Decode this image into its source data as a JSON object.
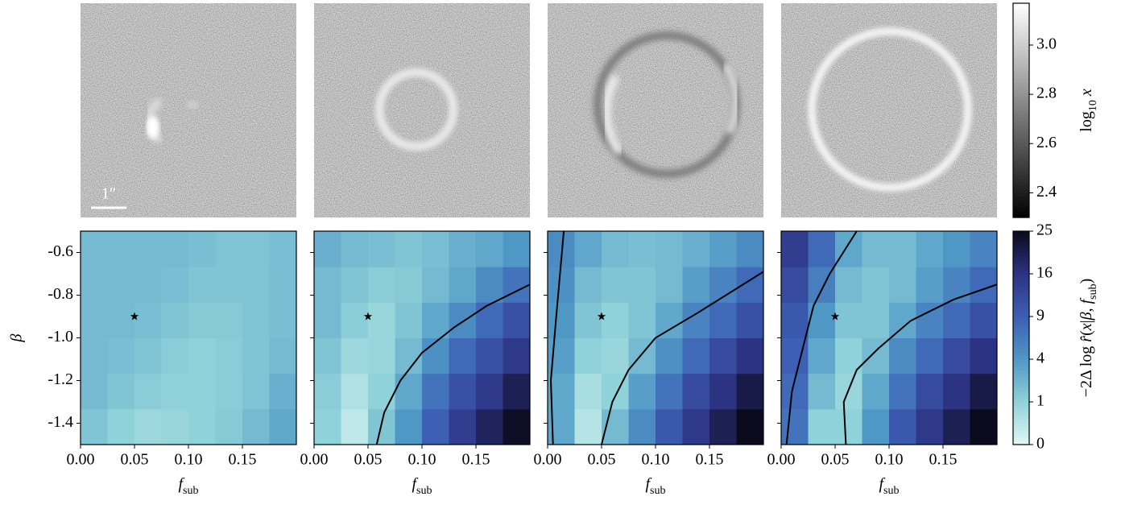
{
  "images": {
    "scalebar_label": "1″"
  },
  "colorbars": [
    {
      "label": [
        {
          "text": "log"
        },
        {
          "text": "10",
          "sub": true
        },
        {
          "text": " x",
          "italic": true
        }
      ],
      "ylim": [
        2.3,
        3.17
      ],
      "yticks": [
        2.4,
        2.6,
        2.8,
        {
          "value": 3,
          "label": "3.0"
        }
      ],
      "scale": "linear",
      "stops": [
        2.3,
        3.17
      ],
      "colors": [
        "#000000",
        "#ffffff"
      ]
    },
    {
      "label": [
        {
          "text": "−2Δ log "
        },
        {
          "text": "r̂",
          "italic": true
        },
        {
          "text": "("
        },
        {
          "text": "x",
          "italic": true
        },
        {
          "text": "|"
        },
        {
          "text": "β",
          "italic": true
        },
        {
          "text": ", "
        },
        {
          "text": "f",
          "italic": true
        },
        {
          "text": "sub",
          "sub": true
        },
        {
          "text": ")"
        }
      ],
      "ylim": [
        0,
        25
      ],
      "yticks": [
        0,
        1,
        4,
        9,
        16,
        25
      ],
      "scale": "sqrt",
      "stops": [
        0,
        1,
        4,
        9,
        16,
        25
      ],
      "colors": [
        "#e2f8f6",
        "#90d2d9",
        "#4f98c6",
        "#3d5fb4",
        "#2d3383",
        "#0a0a1c"
      ]
    }
  ],
  "chart_data": [
    {
      "type": "heatmap",
      "xlabel": "f",
      "xlabel_sub": "sub",
      "ylabel": "β",
      "ytick_labels": true,
      "xlim": [
        0,
        0.2
      ],
      "ylim": [
        -1.5,
        -0.5
      ],
      "xticks": [
        {
          "value": 0,
          "label": "0.00"
        },
        0.05,
        {
          "value": 0.1,
          "label": "0.10"
        },
        0.15
      ],
      "yticks": [
        -0.6,
        -0.8,
        {
          "value": -1,
          "label": "-1.0"
        },
        -1.2,
        -1.4
      ],
      "x_edges": [
        0,
        0.025,
        0.05,
        0.075,
        0.1,
        0.125,
        0.15,
        0.175,
        0.2
      ],
      "y_edges": [
        -1.5,
        -1.3333,
        -1.1667,
        -1,
        -0.8333,
        -0.6667,
        -0.5
      ],
      "values": [
        [
          1.5,
          1,
          0.7,
          0.8,
          1,
          1.3,
          2,
          3
        ],
        [
          2,
          1.5,
          1.2,
          1,
          1,
          1.2,
          1.6,
          2.5
        ],
        [
          2,
          1.8,
          1.5,
          1.2,
          1,
          1.2,
          1.5,
          2
        ],
        [
          2,
          2,
          1.8,
          1.5,
          1.3,
          1.3,
          1.5,
          1.8
        ],
        [
          2,
          2,
          2,
          1.8,
          1.5,
          1.5,
          1.5,
          1.8
        ],
        [
          2,
          2,
          2,
          2,
          1.8,
          1.6,
          1.6,
          1.8
        ]
      ],
      "contours": [],
      "marker": {
        "x": 0.05,
        "y": -0.9
      }
    },
    {
      "type": "heatmap",
      "xlabel": "f",
      "xlabel_sub": "sub",
      "ytick_labels": false,
      "xlim": [
        0,
        0.2
      ],
      "ylim": [
        -1.5,
        -0.5
      ],
      "xticks": [
        {
          "value": 0,
          "label": "0.00"
        },
        0.05,
        {
          "value": 0.1,
          "label": "0.10"
        },
        0.15
      ],
      "yticks": [
        -0.6,
        -0.8,
        -1,
        -1.2,
        -1.4
      ],
      "x_edges": [
        0,
        0.025,
        0.05,
        0.075,
        0.1,
        0.125,
        0.15,
        0.175,
        0.2
      ],
      "y_edges": [
        -1.5,
        -1.3333,
        -1.1667,
        -1,
        -0.8333,
        -0.6667,
        -0.5
      ],
      "values": [
        [
          1,
          0.2,
          1.5,
          4,
          9,
          14,
          19,
          24
        ],
        [
          1.2,
          0.4,
          1,
          3,
          7,
          11,
          15,
          20
        ],
        [
          1.5,
          0.7,
          0.8,
          2,
          4.5,
          8,
          11,
          15
        ],
        [
          2,
          1.2,
          0.8,
          1.5,
          3,
          5,
          8,
          11
        ],
        [
          2,
          1.5,
          1.2,
          1.3,
          2,
          3,
          5,
          7
        ],
        [
          2.5,
          2,
          1.8,
          1.5,
          1.8,
          2.5,
          3,
          4
        ]
      ],
      "contours": [
        {
          "x": [
            0.058,
            0.065,
            0.08,
            0.1,
            0.13,
            0.16,
            0.2
          ],
          "y": [
            -1.5,
            -1.35,
            -1.2,
            -1.07,
            -0.95,
            -0.85,
            -0.75
          ]
        }
      ],
      "marker": {
        "x": 0.05,
        "y": -0.9
      }
    },
    {
      "type": "heatmap",
      "xlabel": "f",
      "xlabel_sub": "sub",
      "ytick_labels": false,
      "xlim": [
        0,
        0.2
      ],
      "ylim": [
        -1.5,
        -0.5
      ],
      "xticks": [
        {
          "value": 0,
          "label": "0.00"
        },
        0.05,
        {
          "value": 0.1,
          "label": "0.10"
        },
        0.15
      ],
      "yticks": [
        -0.6,
        -0.8,
        -1,
        -1.2,
        -1.4
      ],
      "x_edges": [
        0,
        0.025,
        0.05,
        0.075,
        0.1,
        0.125,
        0.15,
        0.175,
        0.2
      ],
      "y_edges": [
        -1.5,
        -1.3333,
        -1.1667,
        -1,
        -0.8333,
        -0.6667,
        -0.5
      ],
      "values": [
        [
          3,
          0.3,
          2,
          5,
          10,
          15,
          20,
          25
        ],
        [
          3,
          0.5,
          1,
          3.5,
          7,
          12,
          16,
          21
        ],
        [
          3.5,
          1,
          0.8,
          2,
          4.5,
          8,
          12,
          16
        ],
        [
          4,
          1.5,
          1,
          1.5,
          3,
          5.5,
          8,
          11
        ],
        [
          4.5,
          2,
          1.5,
          1.5,
          2,
          3.5,
          5.5,
          8
        ],
        [
          5,
          3,
          2,
          1.8,
          2,
          2.5,
          3.5,
          5
        ]
      ],
      "contours": [
        {
          "x": [
            0.005,
            0.003,
            0.008,
            0.015
          ],
          "y": [
            -1.5,
            -1.2,
            -0.9,
            -0.5
          ]
        },
        {
          "x": [
            0.05,
            0.06,
            0.075,
            0.1,
            0.14,
            0.2
          ],
          "y": [
            -1.5,
            -1.3,
            -1.15,
            -1,
            -0.88,
            -0.69
          ]
        }
      ],
      "marker": {
        "x": 0.05,
        "y": -0.9
      }
    },
    {
      "type": "heatmap",
      "xlabel": "f",
      "xlabel_sub": "sub",
      "ytick_labels": false,
      "xlim": [
        0,
        0.2
      ],
      "ylim": [
        -1.5,
        -0.5
      ],
      "xticks": [
        {
          "value": 0,
          "label": "0.00"
        },
        0.05,
        {
          "value": 0.1,
          "label": "0.10"
        },
        0.15
      ],
      "yticks": [
        -0.6,
        -0.8,
        -1,
        -1.2,
        -1.4
      ],
      "x_edges": [
        0,
        0.025,
        0.05,
        0.075,
        0.1,
        0.125,
        0.15,
        0.175,
        0.2
      ],
      "y_edges": [
        -1.5,
        -1.3333,
        -1.1667,
        -1,
        -0.8333,
        -0.6667,
        -0.5
      ],
      "values": [
        [
          7,
          1,
          1,
          4,
          10,
          15,
          20,
          25
        ],
        [
          8,
          2,
          0.8,
          3,
          7,
          12,
          16,
          21
        ],
        [
          9,
          3,
          1,
          2,
          5,
          8,
          12,
          16
        ],
        [
          10,
          4,
          1.5,
          1.5,
          3,
          5.5,
          8,
          11
        ],
        [
          12,
          6,
          2,
          1.5,
          2,
          3.5,
          5.5,
          8
        ],
        [
          14,
          8,
          3,
          2,
          2,
          3,
          4,
          5.5
        ]
      ],
      "contours": [
        {
          "x": [
            0.005,
            0.01,
            0.02,
            0.03,
            0.045,
            0.07
          ],
          "y": [
            -1.5,
            -1.25,
            -1.05,
            -0.85,
            -0.7,
            -0.5
          ]
        },
        {
          "x": [
            0.06,
            0.058,
            0.07,
            0.09,
            0.12,
            0.16,
            0.2
          ],
          "y": [
            -1.5,
            -1.3,
            -1.15,
            -1.05,
            -0.92,
            -0.82,
            -0.75
          ]
        }
      ],
      "marker": {
        "x": 0.05,
        "y": -0.9
      }
    }
  ]
}
